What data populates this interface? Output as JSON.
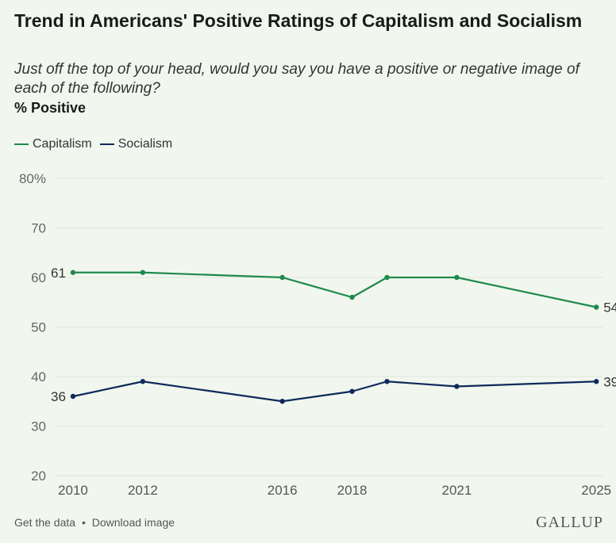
{
  "header": {
    "title": "Trend in Americans' Positive Ratings of Capitalism and Socialism",
    "subtitle": "Just off the top of your head, would you say you have a positive or negative image of each of the following?",
    "unit_label": "% Positive"
  },
  "footer": {
    "get_data": "Get the data",
    "separator": "•",
    "download": "Download image",
    "brand": "GALLUP"
  },
  "chart_data": {
    "type": "line",
    "title": "Trend in Americans' Positive Ratings of Capitalism and Socialism",
    "subtitle": "Just off the top of your head, would you say you have a positive or negative image of each of the following?",
    "ylabel": "% Positive",
    "xlabel": "",
    "x": [
      2010,
      2012,
      2016,
      2018,
      2019,
      2021,
      2025
    ],
    "x_tick_labels": [
      "2010",
      "2012",
      "2016",
      "2018",
      "2021",
      "2025"
    ],
    "x_ticks": [
      2010,
      2012,
      2016,
      2018,
      2021,
      2025
    ],
    "y_ticks": [
      20,
      30,
      40,
      50,
      60,
      70,
      80
    ],
    "y_tick_labels": [
      "20",
      "30",
      "40",
      "50",
      "60",
      "70",
      "80%"
    ],
    "ylim": [
      20,
      80
    ],
    "xlim": [
      2009.5,
      2025.2
    ],
    "grid": "horizontal",
    "legend_position": "top-left",
    "series": [
      {
        "name": "Capitalism",
        "color": "#1f8a4c",
        "values": [
          61,
          61,
          60,
          56,
          60,
          60,
          54
        ],
        "labels": [
          {
            "index": 0,
            "text": "61",
            "side": "left"
          },
          {
            "index": 6,
            "text": "54",
            "side": "right"
          }
        ]
      },
      {
        "name": "Socialism",
        "color": "#0e2a5c",
        "values": [
          36,
          39,
          35,
          37,
          39,
          38,
          39
        ],
        "labels": [
          {
            "index": 0,
            "text": "36",
            "side": "left"
          },
          {
            "index": 6,
            "text": "39",
            "side": "right"
          }
        ]
      }
    ]
  }
}
